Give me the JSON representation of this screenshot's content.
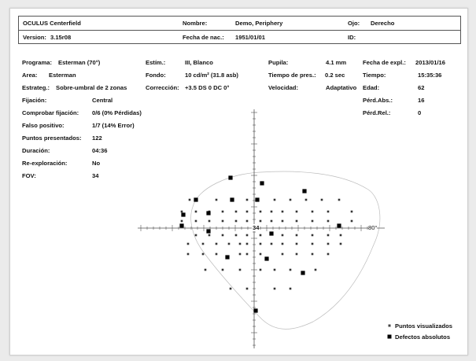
{
  "header": {
    "device": "OCULUS Centerfield",
    "version_label": "Version:",
    "version_value": "3.15r08",
    "name_label": "Nombre:",
    "name_value": "Demo, Periphery",
    "birth_label": "Fecha de nac.:",
    "birth_value": "1951/01/01",
    "eye_label": "Ojo:",
    "eye_value": "Derecho",
    "id_label": "ID:",
    "id_value": ""
  },
  "params": {
    "programa_label": "Programa:",
    "programa_value": "Esterman (70°)",
    "area_label": "Area:",
    "area_value": "Esterman",
    "estrateg_label": "Estrateg.:",
    "estrateg_value": "Sobre-umbral de 2 zonas",
    "fijacion_label": "Fijación:",
    "fijacion_value": "Central",
    "comprobar_label": "Comprobar fijación:",
    "comprobar_value": "0/6 (0% Pérdidas)",
    "falso_label": "Falso positivo:",
    "falso_value": "1/7 (14% Error)",
    "puntos_label": "Puntos presentados:",
    "puntos_value": "122",
    "duracion_label": "Duración:",
    "duracion_value": "04:36",
    "reexpl_label": "Re-exploración:",
    "reexpl_value": "No",
    "fov_label": "FOV:",
    "fov_value": "34",
    "estim_label": "Estím.:",
    "estim_value": "III, Blanco",
    "fondo_label": "Fondo:",
    "fondo_value": "10 cd/m² (31.8 asb)",
    "correccion_label": "Corrección:",
    "correccion_value": "+3.5 DS 0 DC 0°",
    "pupila_label": "Pupila:",
    "pupila_value": "4.1 mm",
    "tiempo_pres_label": "Tiempo de pres.:",
    "tiempo_pres_value": "0.2 sec",
    "velocidad_label": "Velocidad:",
    "velocidad_value": "Adaptativo",
    "fecha_label": "Fecha de expl.:",
    "fecha_value": "2013/01/16",
    "tiempo_label": "Tiempo:",
    "tiempo_value": "15:35:36",
    "edad_label": "Edad:",
    "edad_value": "62",
    "perd_abs_label": "Pérd.Abs.:",
    "perd_abs_value": "16",
    "perd_rel_label": "Pérd.Rel.:",
    "perd_rel_value": "0"
  },
  "plot": {
    "center_label": "34",
    "axis_label": "80°"
  },
  "legend": {
    "seen": "Puntos visualizados",
    "defect": "Defectos absolutos"
  },
  "colors": {
    "header_border": "#555555",
    "point": "#333333",
    "defect": "#000000",
    "boundary": "#bdbdbd"
  }
}
